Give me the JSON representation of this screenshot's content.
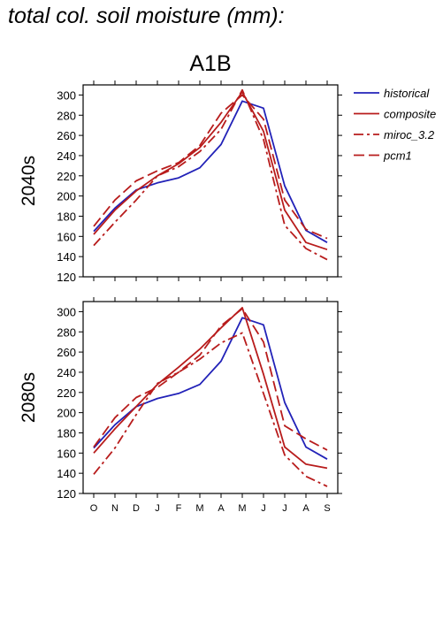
{
  "title": "total col. soil moisture (mm):",
  "scenario": "A1B",
  "chart_data": {
    "type": "line",
    "categories": [
      "O",
      "N",
      "D",
      "J",
      "F",
      "M",
      "A",
      "M",
      "J",
      "J",
      "A",
      "S"
    ],
    "ylim": [
      120,
      310
    ],
    "yticks": [
      120,
      140,
      160,
      180,
      200,
      220,
      240,
      260,
      280,
      300
    ],
    "grid": false,
    "legend_position": "top-right",
    "legend": [
      {
        "name": "historical",
        "color": "#2222b8",
        "dash": "solid"
      },
      {
        "name": "composite",
        "color": "#b81c1c",
        "dash": "solid"
      },
      {
        "name": "miroc_3.2",
        "color": "#b81c1c",
        "dash": "dashdot"
      },
      {
        "name": "pcm1",
        "color": "#b81c1c",
        "dash": "dash"
      }
    ],
    "panels": [
      {
        "label": "2040s",
        "series": [
          {
            "name": "historical",
            "values": [
              165,
              188,
              206,
              213,
              218,
              228,
              251,
              294,
              287,
              210,
              166,
              154
            ]
          },
          {
            "name": "composite",
            "values": [
              162,
              186,
              205,
              220,
              232,
              248,
              273,
              303,
              264,
              186,
              154,
              147
            ]
          },
          {
            "name": "miroc_3.2",
            "values": [
              151,
              174,
              196,
              220,
              229,
              244,
              266,
              305,
              256,
              171,
              148,
              137
            ]
          },
          {
            "name": "pcm1",
            "values": [
              170,
              196,
              215,
              225,
              233,
              250,
              282,
              300,
              276,
              196,
              167,
              158
            ]
          }
        ]
      },
      {
        "label": "2080s",
        "series": [
          {
            "name": "historical",
            "values": [
              165,
              188,
              206,
              214,
              219,
              228,
              251,
              294,
              287,
              210,
              166,
              154
            ]
          },
          {
            "name": "composite",
            "values": [
              160,
              184,
              206,
              228,
              245,
              263,
              284,
              304,
              238,
              166,
              149,
              145
            ]
          },
          {
            "name": "miroc_3.2",
            "values": [
              139,
              165,
              198,
              229,
              240,
              253,
              269,
              279,
              219,
              158,
              137,
              127
            ]
          },
          {
            "name": "pcm1",
            "values": [
              166,
              195,
              215,
              225,
              240,
              257,
              286,
              303,
              270,
              187,
              174,
              163
            ]
          }
        ]
      }
    ]
  }
}
